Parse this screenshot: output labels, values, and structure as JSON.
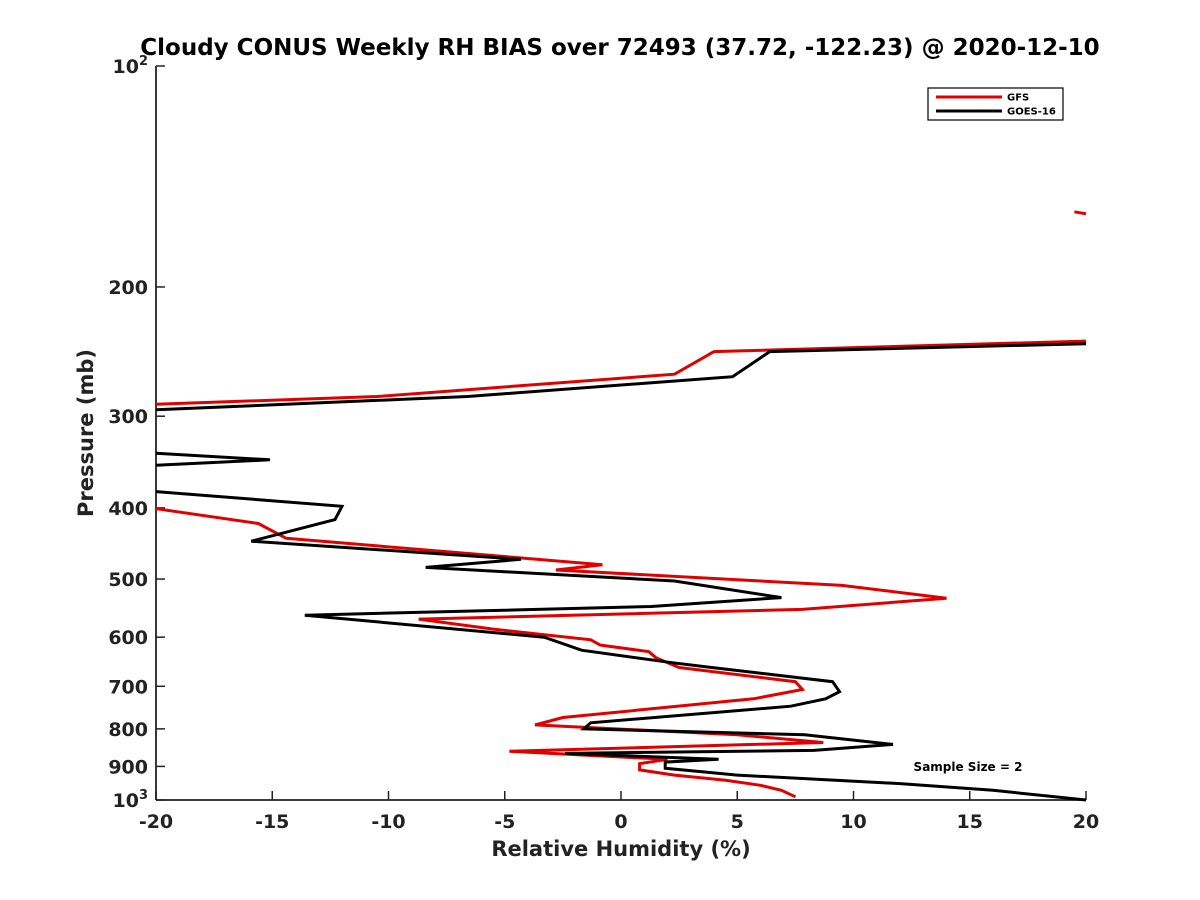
{
  "chart_data": {
    "type": "line",
    "title": "Cloudy CONUS Weekly RH BIAS over 72493 (37.72, -122.23) @ 2020-12-10",
    "xlabel": "Relative Humidity (%)",
    "ylabel": "Pressure (mb)",
    "xlim": [
      -20,
      20
    ],
    "ylim": [
      100,
      1000
    ],
    "y_scale": "log",
    "y_reversed": true,
    "x_ticks": [
      "-20",
      "-15",
      "-10",
      "-5",
      "0",
      "5",
      "10",
      "15",
      "20"
    ],
    "y_ticks": [
      {
        "value": 100,
        "base": "10",
        "exp": "2"
      },
      {
        "value": 200,
        "label": "200"
      },
      {
        "value": 300,
        "label": "300"
      },
      {
        "value": 400,
        "label": "400"
      },
      {
        "value": 500,
        "label": "500"
      },
      {
        "value": 600,
        "label": "600"
      },
      {
        "value": 700,
        "label": "700"
      },
      {
        "value": 800,
        "label": "800"
      },
      {
        "value": 900,
        "label": "900"
      },
      {
        "value": 1000,
        "base": "10",
        "exp": "3"
      }
    ],
    "grid": false,
    "legend_position": "top-right",
    "annotation": "Sample Size = 2",
    "series": [
      {
        "name": "GFS",
        "color": "#e00000",
        "segments": [
          [
            [
              20,
              159
            ],
            [
              19.5,
              158
            ]
          ],
          [
            [
              20,
              237
            ],
            [
              4,
              245
            ],
            [
              2.3,
              263
            ],
            [
              -10.5,
              282
            ],
            [
              -20,
              289
            ]
          ],
          [
            [
              -20,
              401
            ],
            [
              -15.6,
              420
            ],
            [
              -14.4,
              440
            ],
            [
              -0.8,
              478
            ],
            [
              -2.8,
              486
            ],
            [
              9.5,
              510
            ],
            [
              14,
              531
            ],
            [
              7.8,
              550
            ],
            [
              -8.7,
              567
            ],
            [
              -5.5,
              585
            ],
            [
              -1.3,
              605
            ],
            [
              -0.9,
              615
            ],
            [
              1.2,
              628
            ],
            [
              1.5,
              640
            ],
            [
              2.5,
              660
            ],
            [
              7.5,
              690
            ],
            [
              7.8,
              707
            ],
            [
              5.7,
              728
            ],
            [
              -2.5,
              772
            ],
            [
              -3.7,
              790
            ],
            [
              5,
              815
            ],
            [
              8.7,
              835
            ],
            [
              -4.8,
              858
            ],
            [
              2,
              880
            ],
            [
              0.8,
              892
            ],
            [
              0.8,
              910
            ],
            [
              2.3,
              925
            ],
            [
              4.5,
              940
            ],
            [
              6,
              955
            ],
            [
              6.9,
              970
            ],
            [
              7.5,
              990
            ]
          ]
        ]
      },
      {
        "name": "GOES-16",
        "color": "#000000",
        "segments": [
          [
            [
              20,
              239
            ],
            [
              6.4,
              245
            ],
            [
              4.8,
              265
            ],
            [
              -6.6,
              282
            ],
            [
              -20,
              294
            ]
          ],
          [
            [
              -20,
              337
            ],
            [
              -15.1,
              344
            ],
            [
              -20,
              350
            ]
          ],
          [
            [
              -20,
              380
            ],
            [
              -12,
              398
            ],
            [
              -12.3,
              415
            ],
            [
              -15.9,
              444
            ],
            [
              -4.3,
              470
            ],
            [
              -8.4,
              482
            ],
            [
              2.3,
              503
            ],
            [
              6.9,
              530
            ],
            [
              1.3,
              545
            ],
            [
              -13.6,
              560
            ],
            [
              -3.3,
              600
            ],
            [
              -1.7,
              625
            ],
            [
              2.2,
              650
            ],
            [
              3.9,
              660
            ],
            [
              9.1,
              690
            ],
            [
              9.4,
              712
            ],
            [
              8.8,
              728
            ],
            [
              7.3,
              745
            ],
            [
              -1.3,
              785
            ],
            [
              -1.6,
              800
            ],
            [
              7.9,
              815
            ],
            [
              11.7,
              840
            ],
            [
              8.3,
              856
            ],
            [
              -2.4,
              864
            ],
            [
              4.2,
              880
            ],
            [
              1.9,
              888
            ],
            [
              1.9,
              905
            ],
            [
              5,
              925
            ],
            [
              12,
              950
            ],
            [
              16,
              970
            ],
            [
              20,
              1000
            ]
          ]
        ]
      }
    ]
  }
}
